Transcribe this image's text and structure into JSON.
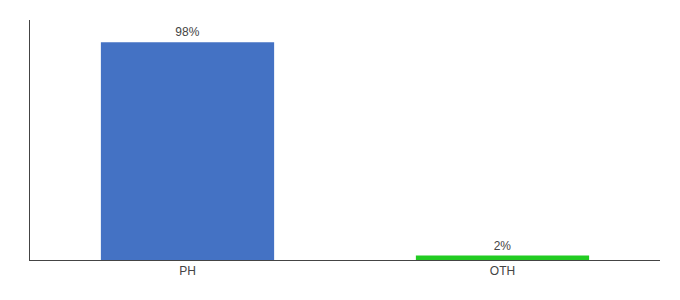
{
  "chart_data": {
    "type": "bar",
    "categories": [
      "PH",
      "OTH"
    ],
    "values": [
      98,
      2
    ],
    "value_labels": [
      "98%",
      "2%"
    ],
    "colors": [
      "#4472c4",
      "#22cc22"
    ],
    "ylim": [
      0,
      108
    ],
    "data_labels": true,
    "tick_labels": "x",
    "grid": false
  }
}
